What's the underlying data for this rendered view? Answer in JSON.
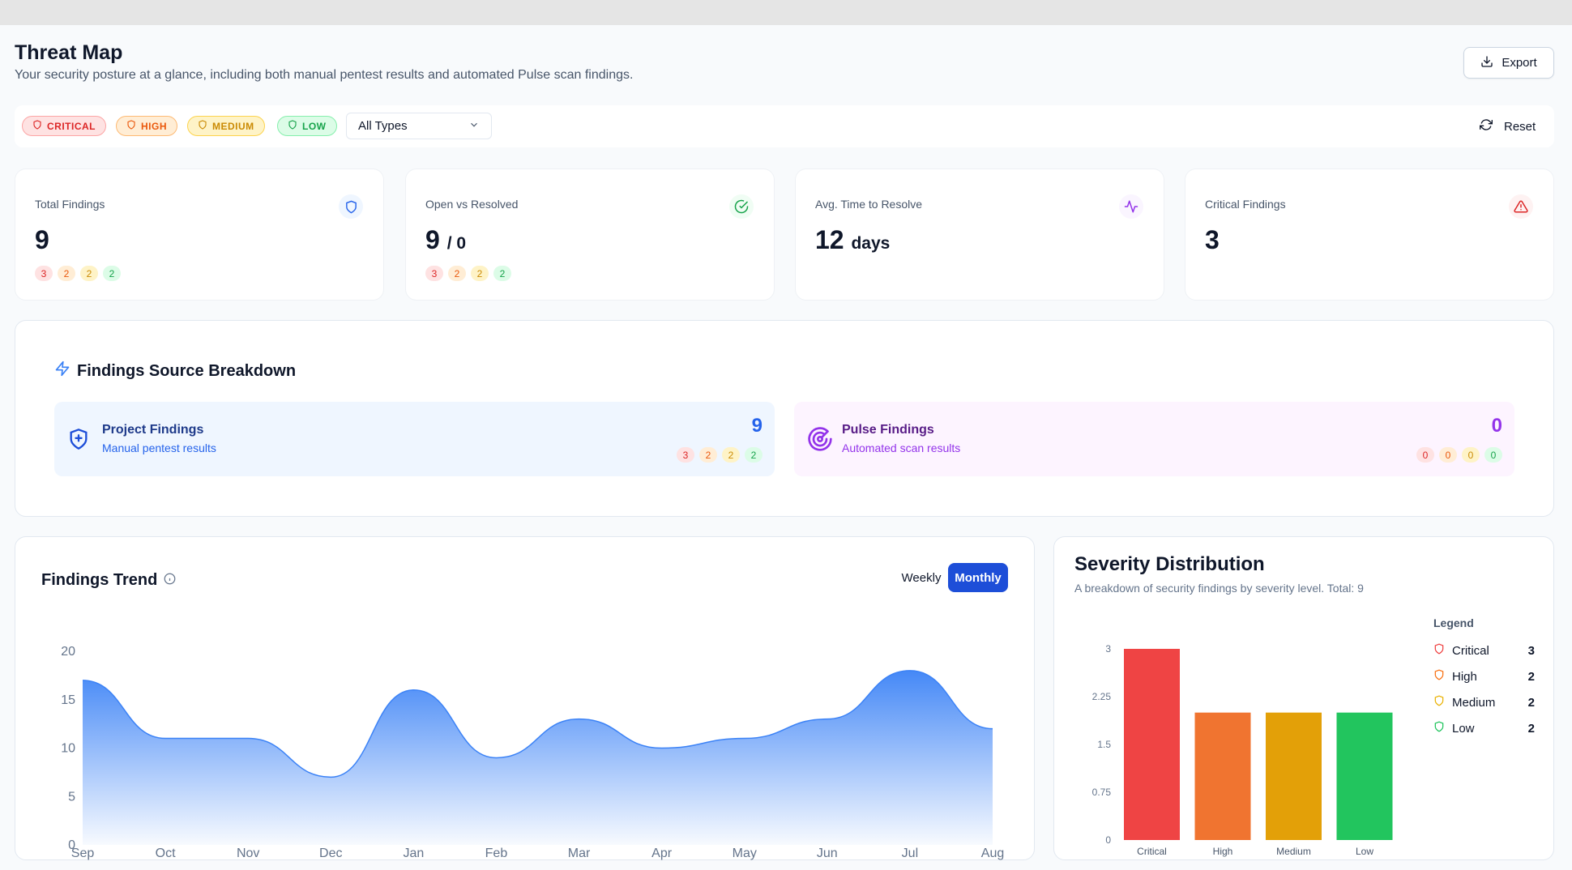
{
  "header": {
    "title": "Threat Map",
    "subtitle": "Your security posture at a glance, including both manual pentest results and automated Pulse scan findings.",
    "export_label": "Export"
  },
  "filters": {
    "severity_chips": [
      {
        "label": "CRITICAL",
        "color": "#dc2626",
        "bg": "#fee2e2",
        "border": "#fca5a5"
      },
      {
        "label": "HIGH",
        "color": "#ea580c",
        "bg": "#ffedd5",
        "border": "#fdba74"
      },
      {
        "label": "MEDIUM",
        "color": "#ca8a04",
        "bg": "#fef3c7",
        "border": "#fcd34d"
      },
      {
        "label": "LOW",
        "color": "#16a34a",
        "bg": "#dcfce7",
        "border": "#86efac"
      }
    ],
    "type_select": "All Types",
    "reset_label": "Reset"
  },
  "stats": [
    {
      "label": "Total Findings",
      "value": "9",
      "unit": "",
      "icon": "shield-icon",
      "counts": [
        "3",
        "2",
        "2",
        "2"
      ]
    },
    {
      "label": "Open vs Resolved",
      "value": "9",
      "unit": "/ 0",
      "icon": "check-circle-icon",
      "counts": [
        "3",
        "2",
        "2",
        "2"
      ]
    },
    {
      "label": "Avg. Time to Resolve",
      "value": "12",
      "unit": "days",
      "icon": "activity-icon",
      "counts": []
    },
    {
      "label": "Critical Findings",
      "value": "3",
      "unit": "",
      "icon": "alert-triangle-icon",
      "counts": []
    }
  ],
  "breakdown": {
    "title": "Findings Source Breakdown",
    "project": {
      "name": "Project Findings",
      "desc": "Manual pentest results",
      "count": "9",
      "counts": [
        "3",
        "2",
        "2",
        "2"
      ],
      "color": "#1d4ed8",
      "bg": "#eff6ff"
    },
    "pulse": {
      "name": "Pulse Findings",
      "desc": "Automated scan results",
      "count": "0",
      "counts": [
        "0",
        "0",
        "0",
        "0"
      ],
      "color": "#7e22ce",
      "bg": "#fdf4ff"
    }
  },
  "trend": {
    "title": "Findings Trend",
    "toggle_weekly": "Weekly",
    "toggle_monthly": "Monthly"
  },
  "severity": {
    "title": "Severity Distribution",
    "subtitle": "A breakdown of security findings by severity level. Total: 9",
    "legend_title": "Legend",
    "legend": [
      {
        "name": "Critical",
        "value": "3",
        "color": "#ef4444"
      },
      {
        "name": "High",
        "value": "2",
        "color": "#f97316"
      },
      {
        "name": "Medium",
        "value": "2",
        "color": "#eab308"
      },
      {
        "name": "Low",
        "value": "2",
        "color": "#22c55e"
      }
    ]
  },
  "chart_data": [
    {
      "type": "area",
      "x": [
        "Sep",
        "Oct",
        "Nov",
        "Dec",
        "Jan",
        "Feb",
        "Mar",
        "Apr",
        "May",
        "Jun",
        "Jul",
        "Aug"
      ],
      "values": [
        17,
        11,
        11,
        7,
        16,
        9,
        13,
        10,
        11,
        13,
        18,
        12
      ],
      "ylim": [
        0,
        20
      ],
      "yticks": [
        "0",
        "5",
        "10",
        "15",
        "20"
      ],
      "grid": false,
      "color": "#3b82f6"
    },
    {
      "type": "bar",
      "categories": [
        "Critical",
        "High",
        "Medium",
        "Low"
      ],
      "values": [
        3,
        2,
        2,
        2
      ],
      "colors": [
        "#ef4444",
        "#f07430",
        "#e3a008",
        "#22c55e"
      ],
      "ylim": [
        0,
        3
      ],
      "yticks": [
        "0",
        "0.75",
        "1.5",
        "2.25",
        "3"
      ],
      "legend": "right"
    }
  ]
}
